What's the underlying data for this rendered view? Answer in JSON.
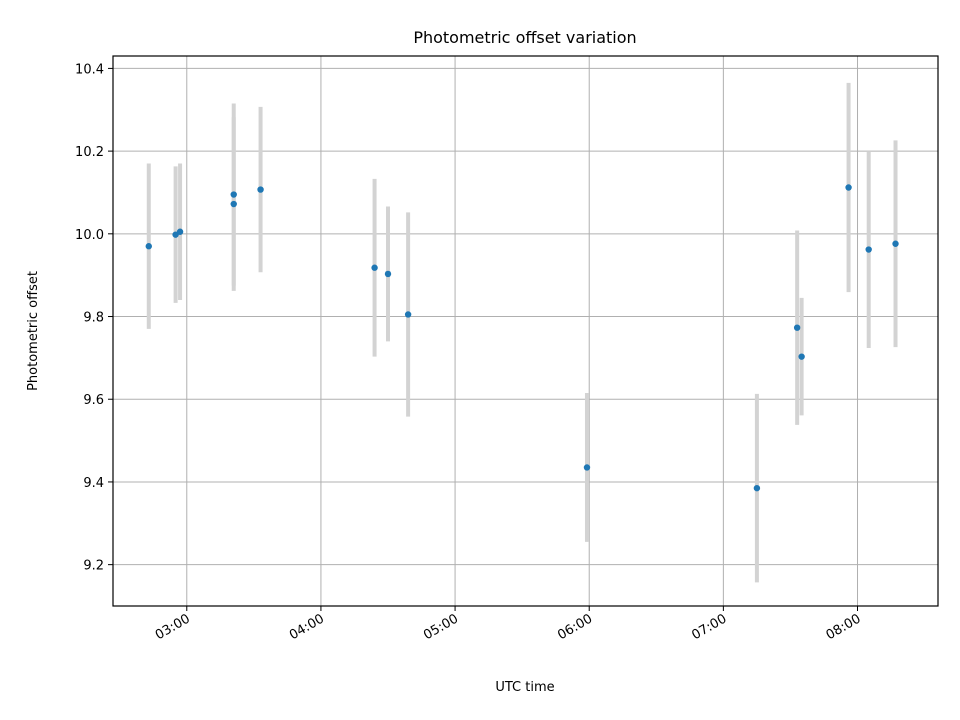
{
  "chart_data": {
    "type": "scatter",
    "title": "Photometric offset variation",
    "xlabel": "UTC time",
    "ylabel": "Photometric offset",
    "xlim": [
      "02:27",
      "08:36"
    ],
    "ylim": [
      9.1,
      10.43
    ],
    "x_ticks": [
      "03:00",
      "04:00",
      "05:00",
      "06:00",
      "07:00",
      "08:00"
    ],
    "y_ticks": [
      9.2,
      9.4,
      9.6,
      9.8,
      10.0,
      10.2,
      10.4
    ],
    "grid": true,
    "marker_color": "#1f77b4",
    "errorbar_color": "#d3d3d3",
    "points": [
      {
        "x": "02:43",
        "y": 9.97,
        "yerr": 0.2
      },
      {
        "x": "02:55",
        "y": 9.998,
        "yerr": 0.165
      },
      {
        "x": "02:57",
        "y": 10.005,
        "yerr": 0.165
      },
      {
        "x": "03:21",
        "y": 10.095,
        "yerr": 0.22
      },
      {
        "x": "03:21",
        "y": 10.072,
        "yerr": 0.21
      },
      {
        "x": "03:33",
        "y": 10.107,
        "yerr": 0.2
      },
      {
        "x": "04:24",
        "y": 9.918,
        "yerr": 0.215
      },
      {
        "x": "04:30",
        "y": 9.903,
        "yerr": 0.163
      },
      {
        "x": "04:39",
        "y": 9.805,
        "yerr": 0.247
      },
      {
        "x": "05:59",
        "y": 9.435,
        "yerr": 0.18
      },
      {
        "x": "07:15",
        "y": 9.385,
        "yerr": 0.228
      },
      {
        "x": "07:33",
        "y": 9.773,
        "yerr": 0.235
      },
      {
        "x": "07:35",
        "y": 9.703,
        "yerr": 0.142
      },
      {
        "x": "07:56",
        "y": 10.112,
        "yerr": 0.253
      },
      {
        "x": "08:05",
        "y": 9.962,
        "yerr": 0.238
      },
      {
        "x": "08:17",
        "y": 9.976,
        "yerr": 0.25
      }
    ]
  }
}
